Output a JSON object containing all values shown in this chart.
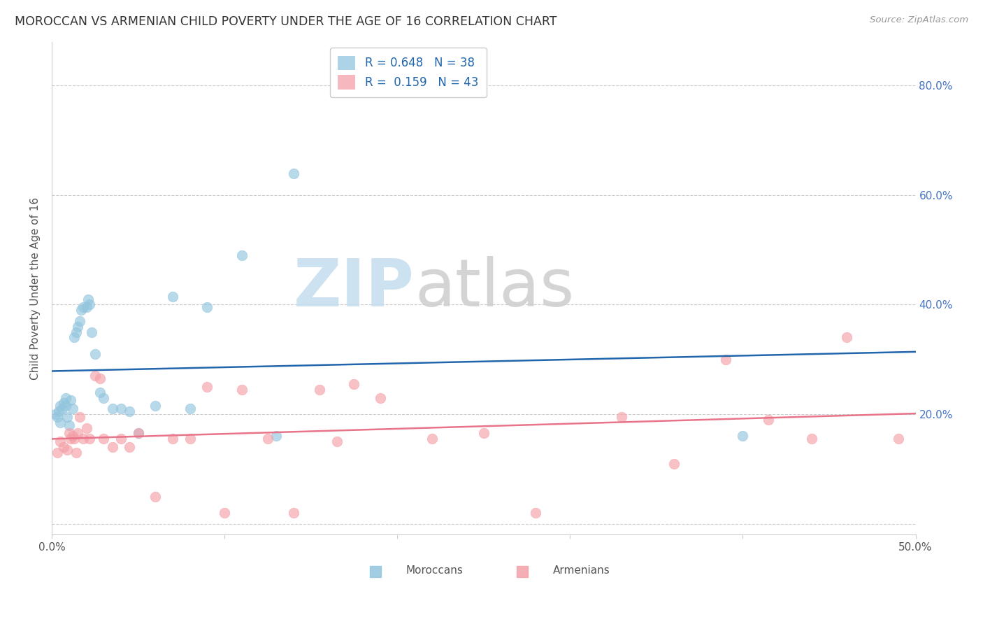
{
  "title": "MOROCCAN VS ARMENIAN CHILD POVERTY UNDER THE AGE OF 16 CORRELATION CHART",
  "source": "Source: ZipAtlas.com",
  "ylabel": "Child Poverty Under the Age of 16",
  "xlim": [
    0.0,
    0.5
  ],
  "ylim": [
    -0.02,
    0.88
  ],
  "yticks": [
    0.0,
    0.2,
    0.4,
    0.6,
    0.8
  ],
  "ytick_labels": [
    "",
    "20.0%",
    "40.0%",
    "60.0%",
    "80.0%"
  ],
  "xticks": [
    0.0,
    0.1,
    0.2,
    0.3,
    0.4,
    0.5
  ],
  "xtick_labels": [
    "0.0%",
    "",
    "",
    "",
    "",
    "50.0%"
  ],
  "moroccan_color": "#92c5de",
  "armenian_color": "#f4a0a8",
  "moroccan_line_color": "#2166ac",
  "armenian_line_color": "#e8748a",
  "legend_label_moroccan": "R = 0.648   N = 38",
  "legend_label_armenian": "R =  0.159   N = 43",
  "legend_text_color": "#2166ac",
  "moroccan_x": [
    0.002,
    0.003,
    0.004,
    0.005,
    0.005,
    0.006,
    0.007,
    0.008,
    0.008,
    0.009,
    0.01,
    0.011,
    0.012,
    0.013,
    0.014,
    0.015,
    0.016,
    0.017,
    0.018,
    0.02,
    0.021,
    0.022,
    0.023,
    0.025,
    0.028,
    0.03,
    0.035,
    0.04,
    0.045,
    0.05,
    0.06,
    0.07,
    0.08,
    0.09,
    0.11,
    0.13,
    0.14,
    0.4
  ],
  "moroccan_y": [
    0.2,
    0.195,
    0.205,
    0.215,
    0.185,
    0.21,
    0.22,
    0.215,
    0.23,
    0.195,
    0.18,
    0.225,
    0.21,
    0.34,
    0.35,
    0.36,
    0.37,
    0.39,
    0.395,
    0.395,
    0.41,
    0.4,
    0.35,
    0.31,
    0.24,
    0.23,
    0.21,
    0.21,
    0.205,
    0.165,
    0.215,
    0.415,
    0.21,
    0.395,
    0.49,
    0.16,
    0.64,
    0.16
  ],
  "armenian_x": [
    0.003,
    0.005,
    0.007,
    0.009,
    0.01,
    0.011,
    0.012,
    0.013,
    0.014,
    0.015,
    0.016,
    0.018,
    0.02,
    0.022,
    0.025,
    0.028,
    0.03,
    0.035,
    0.04,
    0.045,
    0.05,
    0.06,
    0.07,
    0.08,
    0.09,
    0.1,
    0.11,
    0.125,
    0.14,
    0.155,
    0.165,
    0.175,
    0.19,
    0.22,
    0.25,
    0.28,
    0.33,
    0.36,
    0.39,
    0.415,
    0.44,
    0.46,
    0.49
  ],
  "armenian_y": [
    0.13,
    0.15,
    0.14,
    0.135,
    0.165,
    0.155,
    0.16,
    0.155,
    0.13,
    0.165,
    0.195,
    0.155,
    0.175,
    0.155,
    0.27,
    0.265,
    0.155,
    0.14,
    0.155,
    0.14,
    0.165,
    0.05,
    0.155,
    0.155,
    0.25,
    0.02,
    0.245,
    0.155,
    0.02,
    0.245,
    0.15,
    0.255,
    0.23,
    0.155,
    0.165,
    0.02,
    0.195,
    0.11,
    0.3,
    0.19,
    0.155,
    0.34,
    0.155
  ]
}
